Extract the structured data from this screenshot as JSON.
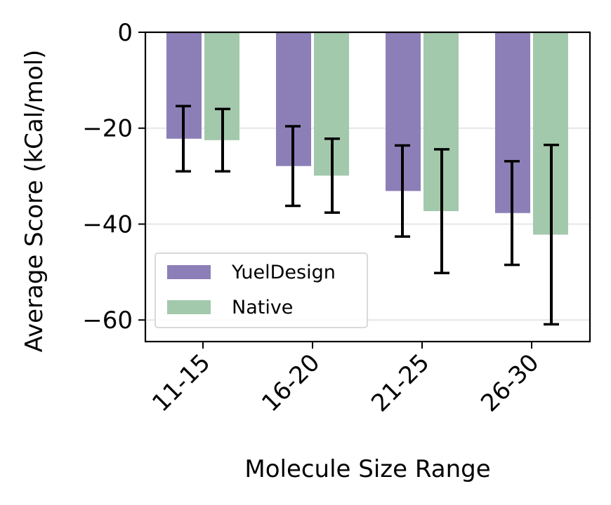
{
  "chart_data": {
    "type": "bar",
    "title": "",
    "xlabel": "Molecule Size Range",
    "ylabel": "Average Score (kCal/mol)",
    "categories": [
      "11-15",
      "16-20",
      "21-25",
      "26-30"
    ],
    "ylim": [
      -64.5,
      0
    ],
    "yticks": [
      0,
      -20,
      -40,
      -60
    ],
    "ytick_labels": [
      "0",
      "−20",
      "−40",
      "−60"
    ],
    "grid": "horizontal",
    "legend_position": "lower-left",
    "series": [
      {
        "name": "YuelDesign",
        "color": "#8c7fb8",
        "values": [
          -22.2,
          -27.9,
          -33.1,
          -37.7
        ],
        "error": [
          6.8,
          8.3,
          9.5,
          10.8
        ]
      },
      {
        "name": "Native",
        "color": "#a3c9ad",
        "values": [
          -22.5,
          -29.9,
          -37.3,
          -42.2
        ],
        "error": [
          6.5,
          7.7,
          12.9,
          18.7
        ]
      }
    ]
  }
}
